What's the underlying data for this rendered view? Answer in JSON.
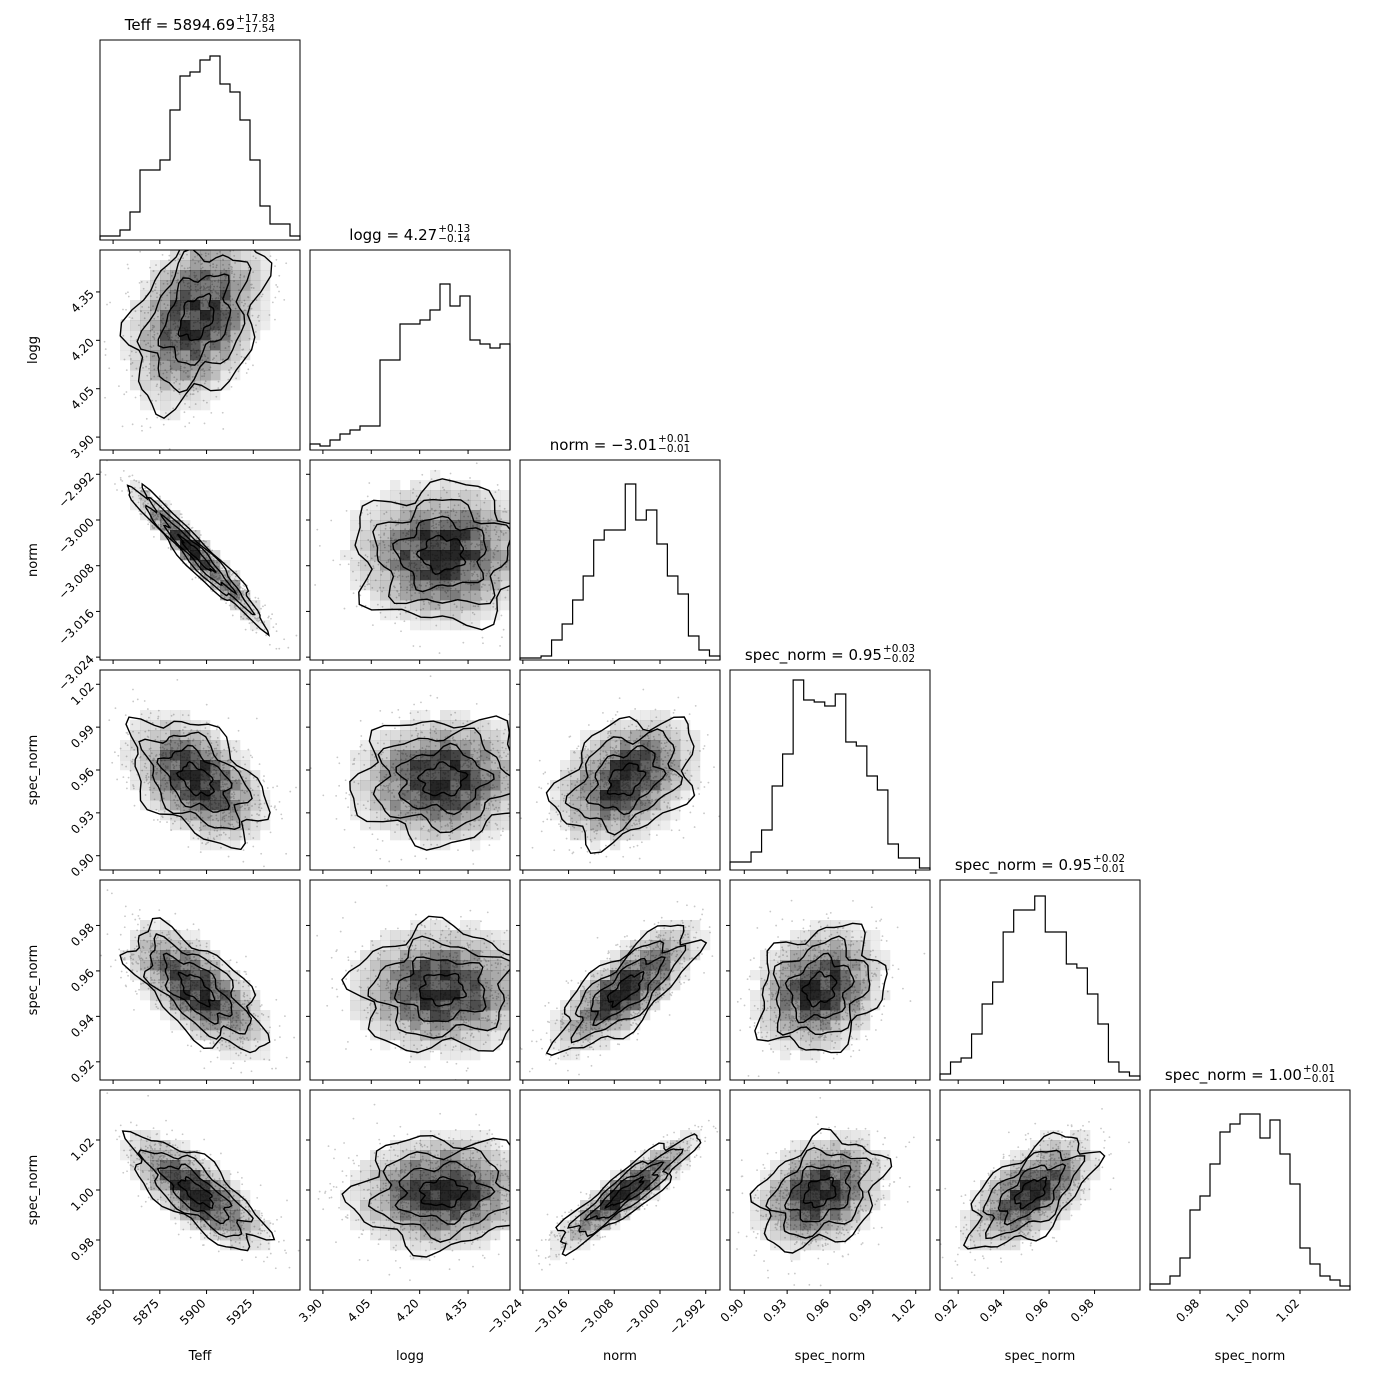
{
  "chart_data": {
    "type": "corner",
    "parameters": [
      {
        "name": "Teff",
        "xlabel": "Teff",
        "ylabel": "",
        "title": {
          "label": "Teff",
          "value": "5894.69",
          "plus": "+17.83",
          "minus": "−17.54"
        },
        "range": [
          5843,
          5950
        ],
        "ticks": [
          5850,
          5875,
          5900,
          5925
        ],
        "tick_labels": [
          "5850",
          "5875",
          "5900",
          "5925"
        ],
        "median": 5894.69,
        "sigma_plus": 17.83,
        "sigma_minus": 17.54
      },
      {
        "name": "logg",
        "xlabel": "logg",
        "ylabel": "logg",
        "title": {
          "label": "logg",
          "value": "4.27",
          "plus": "+0.13",
          "minus": "−0.14"
        },
        "range": [
          3.86,
          4.48
        ],
        "ticks": [
          3.9,
          4.05,
          4.2,
          4.35
        ],
        "tick_labels": [
          "3.90",
          "4.05",
          "4.20",
          "4.35"
        ],
        "median": 4.27,
        "sigma_plus": 0.13,
        "sigma_minus": 0.14
      },
      {
        "name": "norm",
        "xlabel": "norm",
        "ylabel": "norm",
        "title": {
          "label": "norm",
          "value": "−3.01",
          "plus": "+0.01",
          "minus": "−0.01"
        },
        "range": [
          -3.0245,
          -2.9895
        ],
        "ticks": [
          -3.024,
          -3.016,
          -3.008,
          -3.0,
          -2.992
        ],
        "tick_labels": [
          "−3.024",
          "−3.016",
          "−3.008",
          "−3.000",
          "−2.992"
        ],
        "median": -3.006,
        "sigma_plus": 0.006,
        "sigma_minus": 0.006
      },
      {
        "name": "spec_norm_1",
        "xlabel": "spec_norm",
        "ylabel": "spec_norm",
        "title": {
          "label": "spec_norm",
          "value": "0.95",
          "plus": "+0.03",
          "minus": "−0.02"
        },
        "range": [
          0.89,
          1.03
        ],
        "ticks": [
          0.9,
          0.93,
          0.96,
          0.99,
          1.02
        ],
        "tick_labels": [
          "0.90",
          "0.93",
          "0.96",
          "0.99",
          "1.02"
        ],
        "median": 0.953,
        "sigma_plus": 0.025,
        "sigma_minus": 0.018
      },
      {
        "name": "spec_norm_2",
        "xlabel": "spec_norm",
        "ylabel": "spec_norm",
        "title": {
          "label": "spec_norm",
          "value": "0.95",
          "plus": "+0.02",
          "minus": "−0.01"
        },
        "range": [
          0.912,
          1.0
        ],
        "ticks": [
          0.92,
          0.94,
          0.96,
          0.98
        ],
        "tick_labels": [
          "0.92",
          "0.94",
          "0.96",
          "0.98"
        ],
        "median": 0.952,
        "sigma_plus": 0.015,
        "sigma_minus": 0.012
      },
      {
        "name": "spec_norm_3",
        "xlabel": "spec_norm",
        "ylabel": "spec_norm",
        "title": {
          "label": "spec_norm",
          "value": "1.00",
          "plus": "+0.01",
          "minus": "−0.01"
        },
        "range": [
          0.96,
          1.04
        ],
        "ticks": [
          0.98,
          1.0,
          1.02
        ],
        "tick_labels": [
          "0.98",
          "1.00",
          "1.02"
        ],
        "median": 0.999,
        "sigma_plus": 0.011,
        "sigma_minus": 0.011
      }
    ],
    "histograms": [
      [
        0.02,
        0.02,
        0.05,
        0.14,
        0.35,
        0.35,
        0.4,
        0.65,
        0.82,
        0.84,
        0.9,
        0.92,
        0.78,
        0.74,
        0.6,
        0.4,
        0.17,
        0.08,
        0.08,
        0.02
      ],
      [
        0.03,
        0.02,
        0.05,
        0.08,
        0.1,
        0.12,
        0.12,
        0.45,
        0.45,
        0.63,
        0.63,
        0.65,
        0.7,
        0.83,
        0.72,
        0.77,
        0.55,
        0.53,
        0.51,
        0.53
      ],
      [
        0.01,
        0.01,
        0.02,
        0.1,
        0.18,
        0.3,
        0.42,
        0.6,
        0.65,
        0.65,
        0.88,
        0.7,
        0.75,
        0.58,
        0.42,
        0.33,
        0.12,
        0.05,
        0.02
      ],
      [
        0.04,
        0.04,
        0.09,
        0.2,
        0.42,
        0.58,
        0.95,
        0.85,
        0.84,
        0.82,
        0.88,
        0.64,
        0.62,
        0.47,
        0.4,
        0.13,
        0.06,
        0.06,
        0.01
      ],
      [
        0.03,
        0.09,
        0.11,
        0.23,
        0.38,
        0.49,
        0.74,
        0.85,
        0.85,
        0.92,
        0.74,
        0.74,
        0.58,
        0.56,
        0.43,
        0.28,
        0.09,
        0.04,
        0.02
      ],
      [
        0.03,
        0.03,
        0.07,
        0.16,
        0.4,
        0.47,
        0.63,
        0.79,
        0.83,
        0.88,
        0.88,
        0.76,
        0.85,
        0.68,
        0.53,
        0.21,
        0.13,
        0.07,
        0.05,
        0.02
      ]
    ],
    "pairs": [
      {
        "x": 0,
        "y": 1,
        "rho": 0.35
      },
      {
        "x": 0,
        "y": 2,
        "rho": -0.96
      },
      {
        "x": 1,
        "y": 2,
        "rho": 0.0
      },
      {
        "x": 0,
        "y": 3,
        "rho": -0.45
      },
      {
        "x": 1,
        "y": 3,
        "rho": 0.05
      },
      {
        "x": 2,
        "y": 3,
        "rho": 0.35
      },
      {
        "x": 0,
        "y": 4,
        "rho": -0.65
      },
      {
        "x": 1,
        "y": 4,
        "rho": 0.0
      },
      {
        "x": 2,
        "y": 4,
        "rho": 0.75
      },
      {
        "x": 3,
        "y": 4,
        "rho": 0.2
      },
      {
        "x": 0,
        "y": 5,
        "rho": -0.75
      },
      {
        "x": 1,
        "y": 5,
        "rho": 0.05
      },
      {
        "x": 2,
        "y": 5,
        "rho": 0.9
      },
      {
        "x": 3,
        "y": 5,
        "rho": 0.3
      },
      {
        "x": 4,
        "y": 5,
        "rho": 0.6
      }
    ],
    "contour_levels_sigma": [
      0.5,
      1.0,
      1.5,
      2.0
    ],
    "grid": false,
    "legend": "none",
    "colors": {
      "line": "#000000",
      "fill": "#000000",
      "points": "#c8c8c8"
    }
  }
}
